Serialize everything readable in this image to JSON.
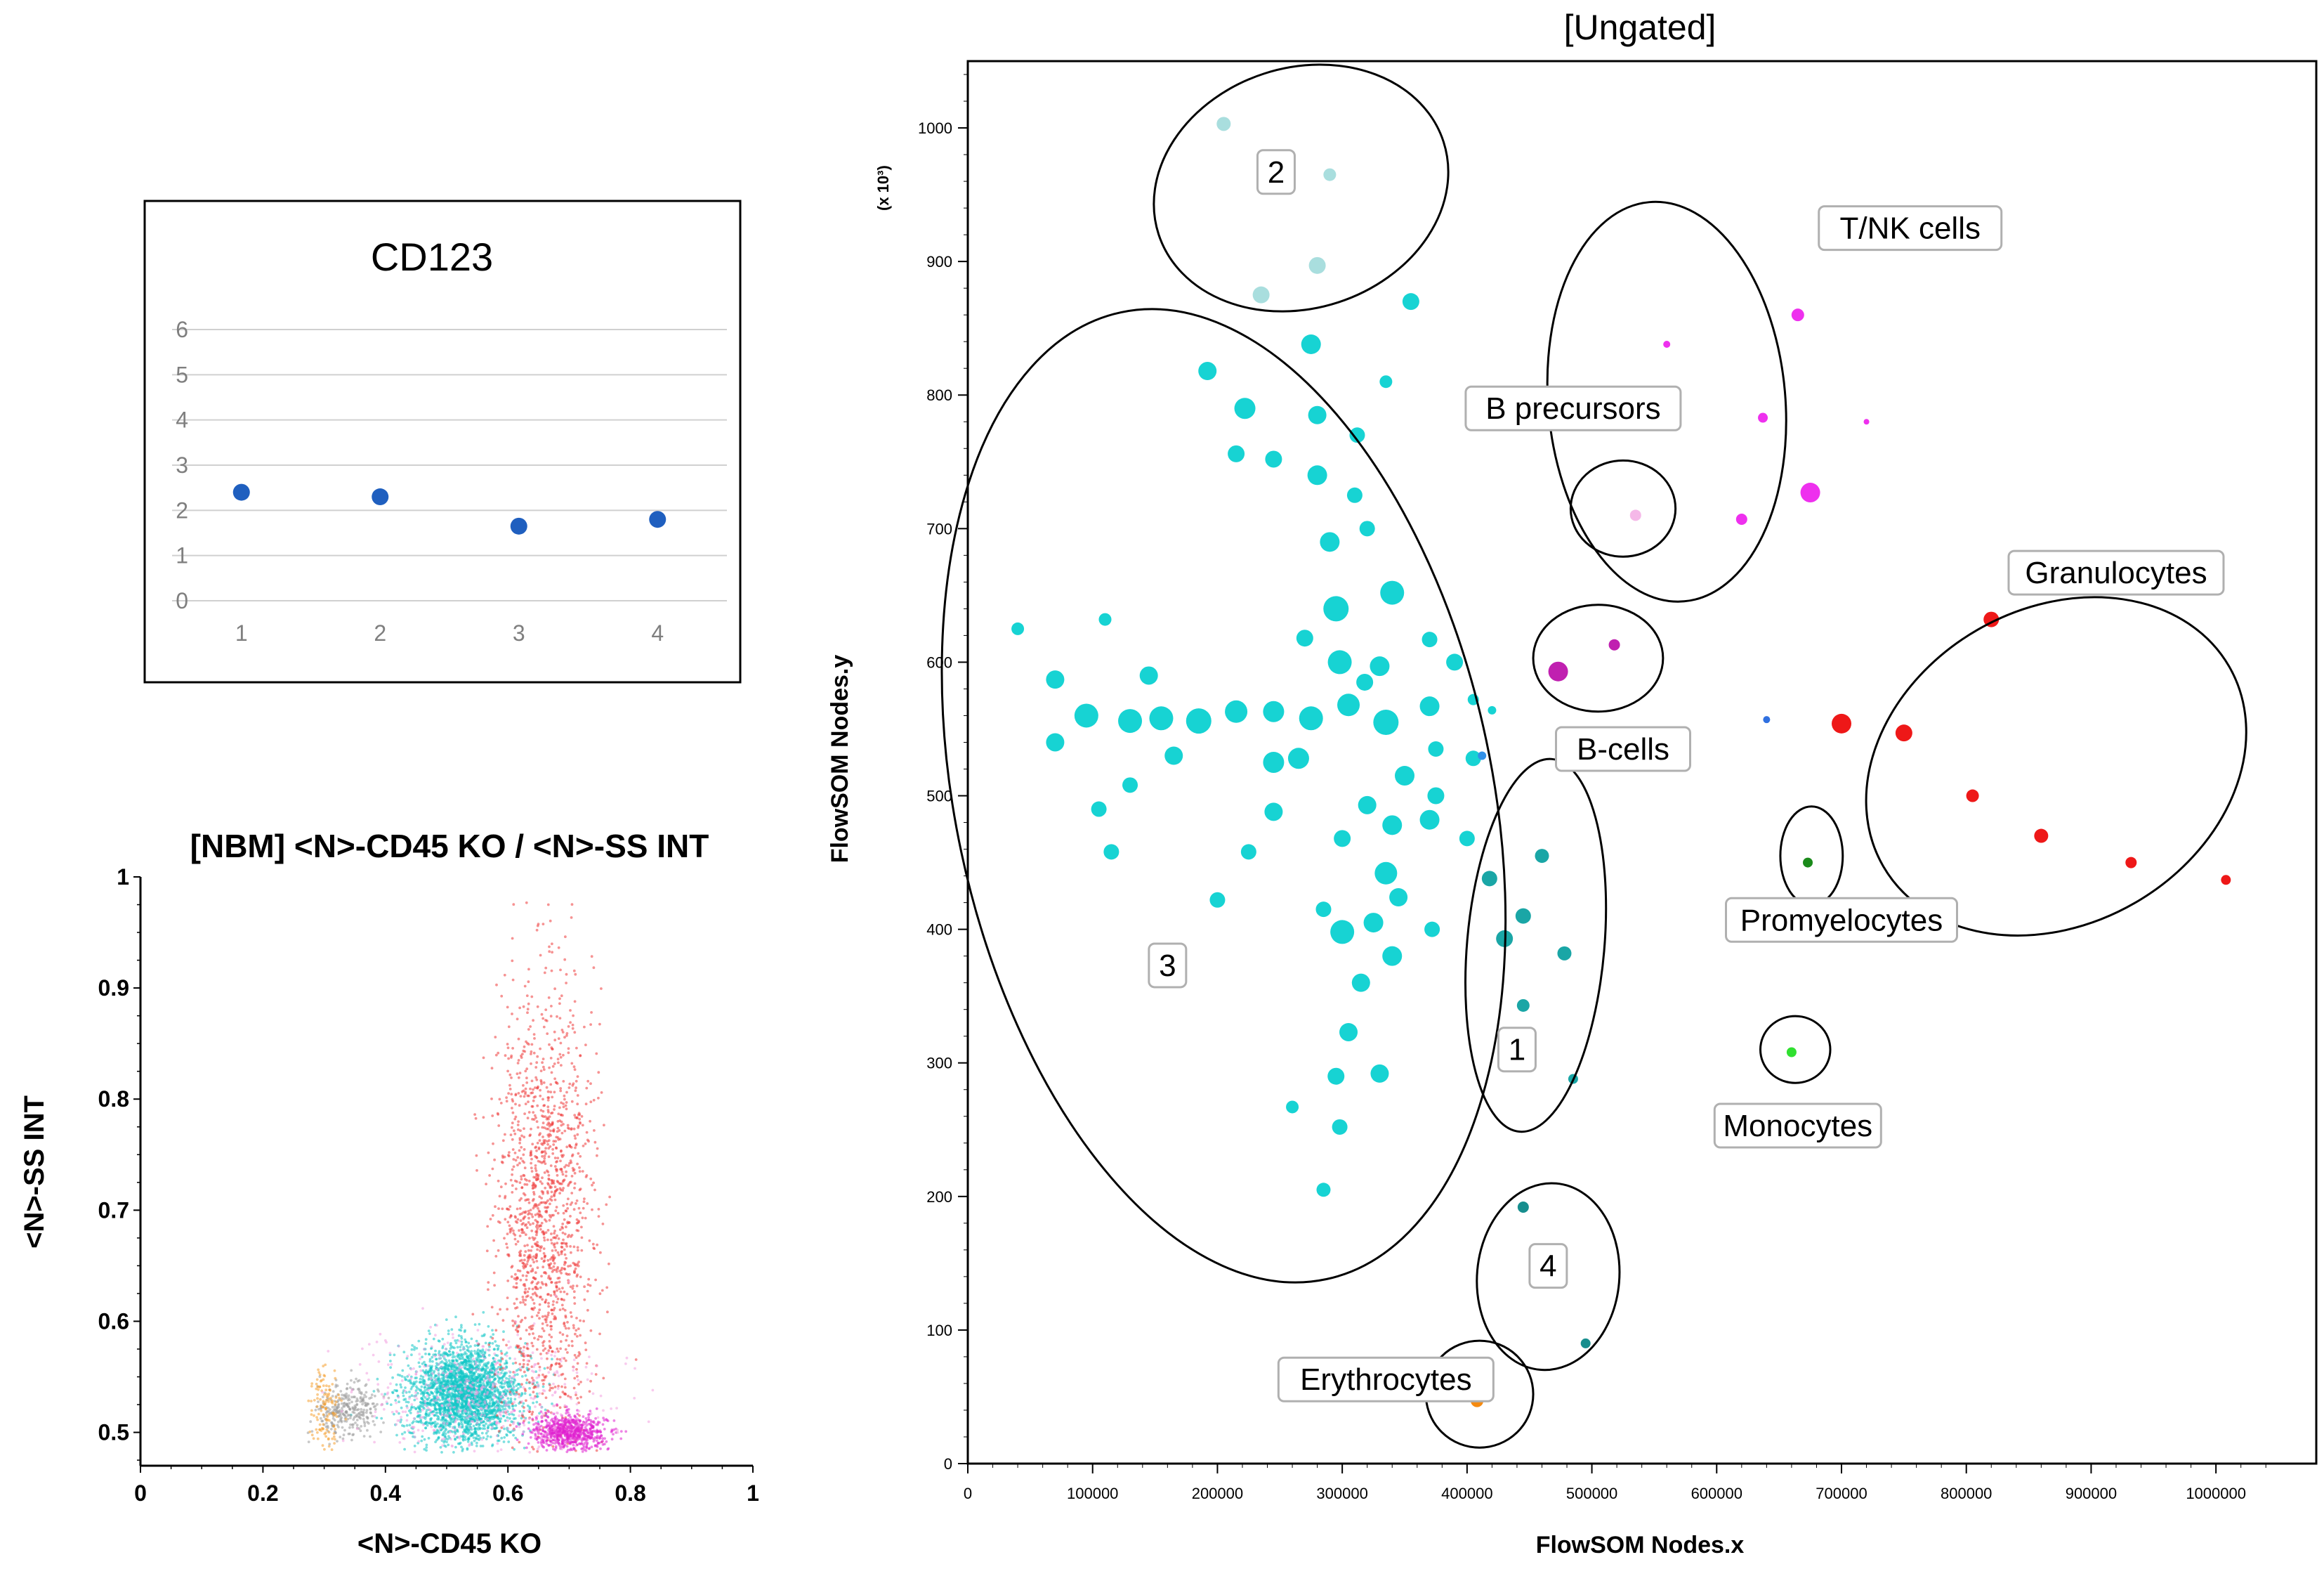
{
  "chart_data": [
    {
      "id": "cd123",
      "type": "scatter",
      "title": "CD123",
      "xlabel": "",
      "ylabel": "",
      "x": [
        1,
        2,
        3,
        4
      ],
      "y": [
        2.4,
        2.3,
        1.65,
        1.8
      ],
      "xticks": [
        "1",
        "2",
        "3",
        "4"
      ],
      "yticks": [
        "0",
        "1",
        "2",
        "3",
        "4",
        "5",
        "6"
      ],
      "ylim": [
        0,
        6
      ],
      "grid": true,
      "marker_color": "#1f5fbf"
    },
    {
      "id": "cd45-ss",
      "type": "scatter",
      "title": "[NBM] <N>-CD45 KO / <N>-SS INT",
      "xlabel": "<N>-CD45 KO",
      "ylabel": "<N>-SS INT",
      "xlim": [
        0,
        1
      ],
      "ylim": [
        0.47,
        1
      ],
      "xticks": [
        "0",
        "0.2",
        "0.4",
        "0.6",
        "0.8",
        "1"
      ],
      "yticks": [
        "0.5",
        "0.6",
        "0.7",
        "0.8",
        "0.9",
        "1"
      ],
      "populations": [
        {
          "name": "cyan-core",
          "color": "#12c6c6",
          "cx": 0.53,
          "cy": 0.535,
          "sx": 0.045,
          "sy": 0.022,
          "n": 2600
        },
        {
          "name": "red-granulo",
          "color": "#ee3b3b",
          "cx": 0.66,
          "cy": 0.7,
          "sx": 0.04,
          "sy": 0.1,
          "n": 1500
        },
        {
          "name": "magenta",
          "color": "#e020d0",
          "cx": 0.7,
          "cy": 0.5,
          "sx": 0.03,
          "sy": 0.008,
          "n": 700
        },
        {
          "name": "grey",
          "color": "#9a9a9a",
          "cx": 0.34,
          "cy": 0.52,
          "sx": 0.025,
          "sy": 0.012,
          "n": 300
        },
        {
          "name": "orange",
          "color": "#f5a030",
          "cx": 0.3,
          "cy": 0.52,
          "sx": 0.012,
          "sy": 0.02,
          "n": 120
        },
        {
          "name": "pink-halo",
          "color": "#f2a0e0",
          "cx": 0.55,
          "cy": 0.53,
          "sx": 0.1,
          "sy": 0.03,
          "n": 500
        }
      ]
    },
    {
      "id": "flowsom",
      "type": "scatter",
      "title": "[Ungated]",
      "xlabel": "FlowSOM Nodes.x",
      "ylabel": "FlowSOM Nodes.y",
      "y_multiplier": "(x 10³)",
      "xlim": [
        0,
        1050000
      ],
      "ylim": [
        0,
        1050
      ],
      "xticks": [
        "0",
        "100000",
        "200000",
        "300000",
        "400000",
        "500000",
        "600000",
        "700000",
        "800000",
        "900000",
        "1000000"
      ],
      "yticks": [
        "0",
        "100",
        "200",
        "300",
        "400",
        "500",
        "600",
        "700",
        "800",
        "900",
        "1000"
      ],
      "nodes": [
        {
          "x": 205000,
          "y": 1003,
          "r": 10,
          "c": "#a9dede"
        },
        {
          "x": 290000,
          "y": 965,
          "r": 9,
          "c": "#a9dede"
        },
        {
          "x": 235000,
          "y": 875,
          "r": 12,
          "c": "#a9dede"
        },
        {
          "x": 280000,
          "y": 897,
          "r": 12,
          "c": "#a9dede"
        },
        {
          "x": 355000,
          "y": 870,
          "r": 12,
          "c": "#17d3d3"
        },
        {
          "x": 275000,
          "y": 838,
          "r": 14,
          "c": "#17d3d3"
        },
        {
          "x": 192000,
          "y": 818,
          "r": 13,
          "c": "#17d3d3"
        },
        {
          "x": 335000,
          "y": 810,
          "r": 9,
          "c": "#17d3d3"
        },
        {
          "x": 222000,
          "y": 790,
          "r": 15,
          "c": "#17d3d3"
        },
        {
          "x": 280000,
          "y": 785,
          "r": 13,
          "c": "#17d3d3"
        },
        {
          "x": 312000,
          "y": 770,
          "r": 11,
          "c": "#17d3d3"
        },
        {
          "x": 215000,
          "y": 756,
          "r": 12,
          "c": "#17d3d3"
        },
        {
          "x": 245000,
          "y": 752,
          "r": 12,
          "c": "#17d3d3"
        },
        {
          "x": 280000,
          "y": 740,
          "r": 14,
          "c": "#17d3d3"
        },
        {
          "x": 310000,
          "y": 725,
          "r": 11,
          "c": "#17d3d3"
        },
        {
          "x": 290000,
          "y": 690,
          "r": 14,
          "c": "#17d3d3"
        },
        {
          "x": 320000,
          "y": 700,
          "r": 11,
          "c": "#17d3d3"
        },
        {
          "x": 340000,
          "y": 652,
          "r": 17,
          "c": "#17d3d3"
        },
        {
          "x": 295000,
          "y": 640,
          "r": 18,
          "c": "#17d3d3"
        },
        {
          "x": 270000,
          "y": 618,
          "r": 12,
          "c": "#17d3d3"
        },
        {
          "x": 370000,
          "y": 617,
          "r": 11,
          "c": "#17d3d3"
        },
        {
          "x": 298000,
          "y": 600,
          "r": 17,
          "c": "#17d3d3"
        },
        {
          "x": 330000,
          "y": 597,
          "r": 14,
          "c": "#17d3d3"
        },
        {
          "x": 390000,
          "y": 600,
          "r": 12,
          "c": "#17d3d3"
        },
        {
          "x": 318000,
          "y": 585,
          "r": 12,
          "c": "#17d3d3"
        },
        {
          "x": 40000,
          "y": 625,
          "r": 9,
          "c": "#17d3d3"
        },
        {
          "x": 110000,
          "y": 632,
          "r": 9,
          "c": "#17d3d3"
        },
        {
          "x": 70000,
          "y": 587,
          "r": 13,
          "c": "#17d3d3"
        },
        {
          "x": 145000,
          "y": 590,
          "r": 13,
          "c": "#17d3d3"
        },
        {
          "x": 95000,
          "y": 560,
          "r": 17,
          "c": "#17d3d3"
        },
        {
          "x": 130000,
          "y": 556,
          "r": 17,
          "c": "#17d3d3"
        },
        {
          "x": 155000,
          "y": 558,
          "r": 17,
          "c": "#17d3d3"
        },
        {
          "x": 185000,
          "y": 556,
          "r": 18,
          "c": "#17d3d3"
        },
        {
          "x": 215000,
          "y": 563,
          "r": 16,
          "c": "#17d3d3"
        },
        {
          "x": 245000,
          "y": 563,
          "r": 15,
          "c": "#17d3d3"
        },
        {
          "x": 275000,
          "y": 558,
          "r": 17,
          "c": "#17d3d3"
        },
        {
          "x": 305000,
          "y": 568,
          "r": 16,
          "c": "#17d3d3"
        },
        {
          "x": 335000,
          "y": 555,
          "r": 18,
          "c": "#17d3d3"
        },
        {
          "x": 370000,
          "y": 567,
          "r": 14,
          "c": "#17d3d3"
        },
        {
          "x": 405000,
          "y": 572,
          "r": 8,
          "c": "#17d3d3"
        },
        {
          "x": 420000,
          "y": 564,
          "r": 6,
          "c": "#17d3d3"
        },
        {
          "x": 70000,
          "y": 540,
          "r": 13,
          "c": "#17d3d3"
        },
        {
          "x": 165000,
          "y": 530,
          "r": 13,
          "c": "#17d3d3"
        },
        {
          "x": 245000,
          "y": 525,
          "r": 15,
          "c": "#17d3d3"
        },
        {
          "x": 265000,
          "y": 528,
          "r": 15,
          "c": "#17d3d3"
        },
        {
          "x": 375000,
          "y": 535,
          "r": 11,
          "c": "#17d3d3"
        },
        {
          "x": 405000,
          "y": 528,
          "r": 11,
          "c": "#17d3d3"
        },
        {
          "x": 130000,
          "y": 508,
          "r": 11,
          "c": "#17d3d3"
        },
        {
          "x": 350000,
          "y": 515,
          "r": 14,
          "c": "#17d3d3"
        },
        {
          "x": 375000,
          "y": 500,
          "r": 12,
          "c": "#17d3d3"
        },
        {
          "x": 105000,
          "y": 490,
          "r": 11,
          "c": "#17d3d3"
        },
        {
          "x": 245000,
          "y": 488,
          "r": 13,
          "c": "#17d3d3"
        },
        {
          "x": 320000,
          "y": 493,
          "r": 13,
          "c": "#17d3d3"
        },
        {
          "x": 370000,
          "y": 482,
          "r": 14,
          "c": "#17d3d3"
        },
        {
          "x": 340000,
          "y": 478,
          "r": 14,
          "c": "#17d3d3"
        },
        {
          "x": 400000,
          "y": 468,
          "r": 11,
          "c": "#17d3d3"
        },
        {
          "x": 115000,
          "y": 458,
          "r": 11,
          "c": "#17d3d3"
        },
        {
          "x": 225000,
          "y": 458,
          "r": 11,
          "c": "#17d3d3"
        },
        {
          "x": 300000,
          "y": 468,
          "r": 12,
          "c": "#17d3d3"
        },
        {
          "x": 335000,
          "y": 442,
          "r": 16,
          "c": "#17d3d3"
        },
        {
          "x": 345000,
          "y": 424,
          "r": 13,
          "c": "#17d3d3"
        },
        {
          "x": 200000,
          "y": 422,
          "r": 11,
          "c": "#17d3d3"
        },
        {
          "x": 285000,
          "y": 415,
          "r": 11,
          "c": "#17d3d3"
        },
        {
          "x": 325000,
          "y": 405,
          "r": 14,
          "c": "#17d3d3"
        },
        {
          "x": 300000,
          "y": 398,
          "r": 17,
          "c": "#17d3d3"
        },
        {
          "x": 372000,
          "y": 400,
          "r": 11,
          "c": "#17d3d3"
        },
        {
          "x": 340000,
          "y": 380,
          "r": 14,
          "c": "#17d3d3"
        },
        {
          "x": 315000,
          "y": 360,
          "r": 13,
          "c": "#17d3d3"
        },
        {
          "x": 305000,
          "y": 323,
          "r": 13,
          "c": "#17d3d3"
        },
        {
          "x": 330000,
          "y": 292,
          "r": 13,
          "c": "#17d3d3"
        },
        {
          "x": 295000,
          "y": 290,
          "r": 12,
          "c": "#17d3d3"
        },
        {
          "x": 260000,
          "y": 267,
          "r": 9,
          "c": "#17d3d3"
        },
        {
          "x": 298000,
          "y": 252,
          "r": 11,
          "c": "#17d3d3"
        },
        {
          "x": 285000,
          "y": 205,
          "r": 10,
          "c": "#17d3d3"
        },
        {
          "x": 418000,
          "y": 438,
          "r": 11,
          "c": "#1aa6a6"
        },
        {
          "x": 460000,
          "y": 455,
          "r": 10,
          "c": "#1aa6a6"
        },
        {
          "x": 445000,
          "y": 410,
          "r": 11,
          "c": "#1aa6a6"
        },
        {
          "x": 430000,
          "y": 393,
          "r": 12,
          "c": "#1aa6a6"
        },
        {
          "x": 478000,
          "y": 382,
          "r": 10,
          "c": "#1aa6a6"
        },
        {
          "x": 445000,
          "y": 343,
          "r": 9,
          "c": "#1aa6a6"
        },
        {
          "x": 485000,
          "y": 288,
          "r": 7,
          "c": "#1aa6a6"
        },
        {
          "x": 445000,
          "y": 192,
          "r": 8,
          "c": "#178e8e"
        },
        {
          "x": 495000,
          "y": 90,
          "r": 7,
          "c": "#178e8e"
        },
        {
          "x": 412000,
          "y": 530,
          "r": 6,
          "c": "#3090e8"
        },
        {
          "x": 408000,
          "y": 47,
          "r": 9,
          "c": "#f58a10"
        },
        {
          "x": 535000,
          "y": 710,
          "r": 8,
          "c": "#f5b8e8"
        },
        {
          "x": 473000,
          "y": 593,
          "r": 14,
          "c": "#c020b0"
        },
        {
          "x": 518000,
          "y": 613,
          "r": 8,
          "c": "#c020b0"
        },
        {
          "x": 560000,
          "y": 838,
          "r": 5,
          "c": "#ee30ee"
        },
        {
          "x": 665000,
          "y": 860,
          "r": 9,
          "c": "#ee30ee"
        },
        {
          "x": 637000,
          "y": 783,
          "r": 7,
          "c": "#ee30ee"
        },
        {
          "x": 720000,
          "y": 780,
          "r": 4,
          "c": "#ee30ee"
        },
        {
          "x": 675000,
          "y": 727,
          "r": 14,
          "c": "#ee30ee"
        },
        {
          "x": 620000,
          "y": 707,
          "r": 8,
          "c": "#ee30ee"
        },
        {
          "x": 640000,
          "y": 557,
          "r": 5,
          "c": "#3070e0"
        },
        {
          "x": 700000,
          "y": 554,
          "r": 14,
          "c": "#ee1818"
        },
        {
          "x": 820000,
          "y": 632,
          "r": 11,
          "c": "#ee1818"
        },
        {
          "x": 750000,
          "y": 547,
          "r": 12,
          "c": "#ee1818"
        },
        {
          "x": 805000,
          "y": 500,
          "r": 9,
          "c": "#ee1818"
        },
        {
          "x": 860000,
          "y": 470,
          "r": 10,
          "c": "#ee1818"
        },
        {
          "x": 932000,
          "y": 450,
          "r": 8,
          "c": "#ee1818"
        },
        {
          "x": 1008000,
          "y": 437,
          "r": 7,
          "c": "#ee1818"
        },
        {
          "x": 673000,
          "y": 450,
          "r": 7,
          "c": "#1a8a1a"
        },
        {
          "x": 660000,
          "y": 308,
          "r": 7,
          "c": "#30e030"
        }
      ],
      "gates": [
        {
          "cx": 205000,
          "cy": 500,
          "rx": 215000,
          "ry": 370,
          "rot": -12
        },
        {
          "cx": 267000,
          "cy": 955,
          "rx": 120000,
          "ry": 90,
          "rot": -18
        },
        {
          "cx": 560000,
          "cy": 795,
          "rx": 95000,
          "ry": 150,
          "rot": -5
        },
        {
          "cx": 525000,
          "cy": 715,
          "rx": 42000,
          "ry": 36,
          "rot": 0
        },
        {
          "cx": 505000,
          "cy": 603,
          "rx": 52000,
          "ry": 40,
          "rot": 0
        },
        {
          "cx": 455000,
          "cy": 388,
          "rx": 55000,
          "ry": 140,
          "rot": 5
        },
        {
          "cx": 465000,
          "cy": 140,
          "rx": 57000,
          "ry": 70,
          "rot": 5
        },
        {
          "cx": 410000,
          "cy": 52,
          "rx": 43000,
          "ry": 40,
          "rot": 0
        },
        {
          "cx": 872000,
          "cy": 522,
          "rx": 160000,
          "ry": 118,
          "rot": -30
        },
        {
          "cx": 676000,
          "cy": 455,
          "rx": 25000,
          "ry": 37,
          "rot": 0
        },
        {
          "cx": 663000,
          "cy": 310,
          "rx": 28000,
          "ry": 25,
          "rot": 0
        }
      ],
      "labels": [
        {
          "text": "2",
          "x": 247000,
          "y": 967
        },
        {
          "text": "T/NK cells",
          "x": 755000,
          "y": 925
        },
        {
          "text": "B precursors",
          "x": 485000,
          "y": 790
        },
        {
          "text": "Granulocytes",
          "x": 920000,
          "y": 667
        },
        {
          "text": "B-cells",
          "x": 525000,
          "y": 535
        },
        {
          "text": "Promyelocytes",
          "x": 700000,
          "y": 407
        },
        {
          "text": "3",
          "x": 160000,
          "y": 373
        },
        {
          "text": "1",
          "x": 440000,
          "y": 310
        },
        {
          "text": "Monocytes",
          "x": 665000,
          "y": 253
        },
        {
          "text": "4",
          "x": 465000,
          "y": 148
        },
        {
          "text": "Erythrocytes",
          "x": 335000,
          "y": 63
        }
      ]
    }
  ]
}
